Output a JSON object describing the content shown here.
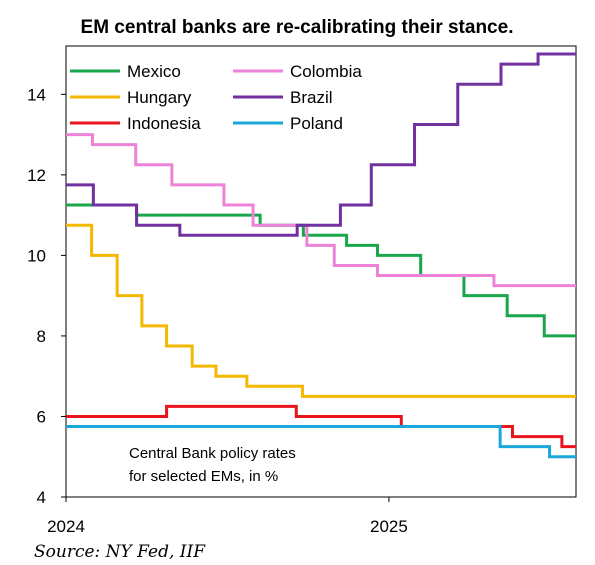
{
  "chart_data": {
    "type": "line",
    "title": "EM central banks are re-calibrating their stance.",
    "xlabel": "",
    "ylabel": "",
    "x_ticks": [
      "2024",
      "2025"
    ],
    "y_ticks": [
      4,
      6,
      8,
      10,
      12,
      14
    ],
    "ylim": [
      4,
      15.2
    ],
    "xlim": [
      "2024-01-01",
      "2025-08-01"
    ],
    "grid": false,
    "legend": "top-left, two columns",
    "annotation": [
      "Central Bank policy rates",
      "for selected EMs, in %"
    ],
    "source": "Source: NY Fed, IIF",
    "series": [
      {
        "name": "Mexico",
        "color": "#1aa64a",
        "step": true,
        "x": [
          "2024-01-01",
          "2024-03-21",
          "2024-08-08",
          "2024-09-26",
          "2024-11-14",
          "2024-12-19",
          "2025-02-06",
          "2025-03-27",
          "2025-05-15",
          "2025-06-26",
          "2025-08-01"
        ],
        "y": [
          11.25,
          11.0,
          10.75,
          10.5,
          10.25,
          10.0,
          9.5,
          9.0,
          8.5,
          8.0,
          8.0
        ]
      },
      {
        "name": "Colombia",
        "color": "#ee82d8",
        "step": true,
        "x": [
          "2024-01-01",
          "2024-01-31",
          "2024-03-20",
          "2024-04-30",
          "2024-06-28",
          "2024-07-31",
          "2024-09-30",
          "2024-10-31",
          "2024-12-19",
          "2025-04-30",
          "2025-08-01"
        ],
        "y": [
          13.0,
          12.75,
          12.25,
          11.75,
          11.25,
          10.75,
          10.25,
          9.75,
          9.5,
          9.25,
          9.25
        ]
      },
      {
        "name": "Hungary",
        "color": "#f5b800",
        "step": true,
        "x": [
          "2024-01-01",
          "2024-01-30",
          "2024-02-28",
          "2024-03-27",
          "2024-04-24",
          "2024-05-23",
          "2024-06-19",
          "2024-07-24",
          "2024-09-25",
          "2025-08-01"
        ],
        "y": [
          10.75,
          10.0,
          9.0,
          8.25,
          7.75,
          7.25,
          7.0,
          6.75,
          6.5,
          6.5
        ]
      },
      {
        "name": "Brazil",
        "color": "#7030a0",
        "step": true,
        "x": [
          "2024-01-01",
          "2024-02-01",
          "2024-03-21",
          "2024-05-09",
          "2024-09-19",
          "2024-11-07",
          "2024-12-12",
          "2025-01-30",
          "2025-03-20",
          "2025-05-08",
          "2025-06-19",
          "2025-08-01"
        ],
        "y": [
          11.75,
          11.25,
          10.75,
          10.5,
          10.75,
          11.25,
          12.25,
          13.25,
          14.25,
          14.75,
          15.0,
          15.0
        ]
      },
      {
        "name": "Indonesia",
        "color": "#e8141e",
        "step": true,
        "x": [
          "2024-01-01",
          "2024-04-24",
          "2024-09-18",
          "2025-01-15",
          "2025-05-21",
          "2025-07-16",
          "2025-08-01"
        ],
        "y": [
          6.0,
          6.25,
          6.0,
          5.75,
          5.5,
          5.25,
          5.25
        ]
      },
      {
        "name": "Poland",
        "color": "#1ba7dc",
        "step": true,
        "x": [
          "2024-01-01",
          "2025-05-07",
          "2025-07-02",
          "2025-08-01"
        ],
        "y": [
          5.75,
          5.25,
          5.0,
          5.0
        ]
      }
    ]
  }
}
